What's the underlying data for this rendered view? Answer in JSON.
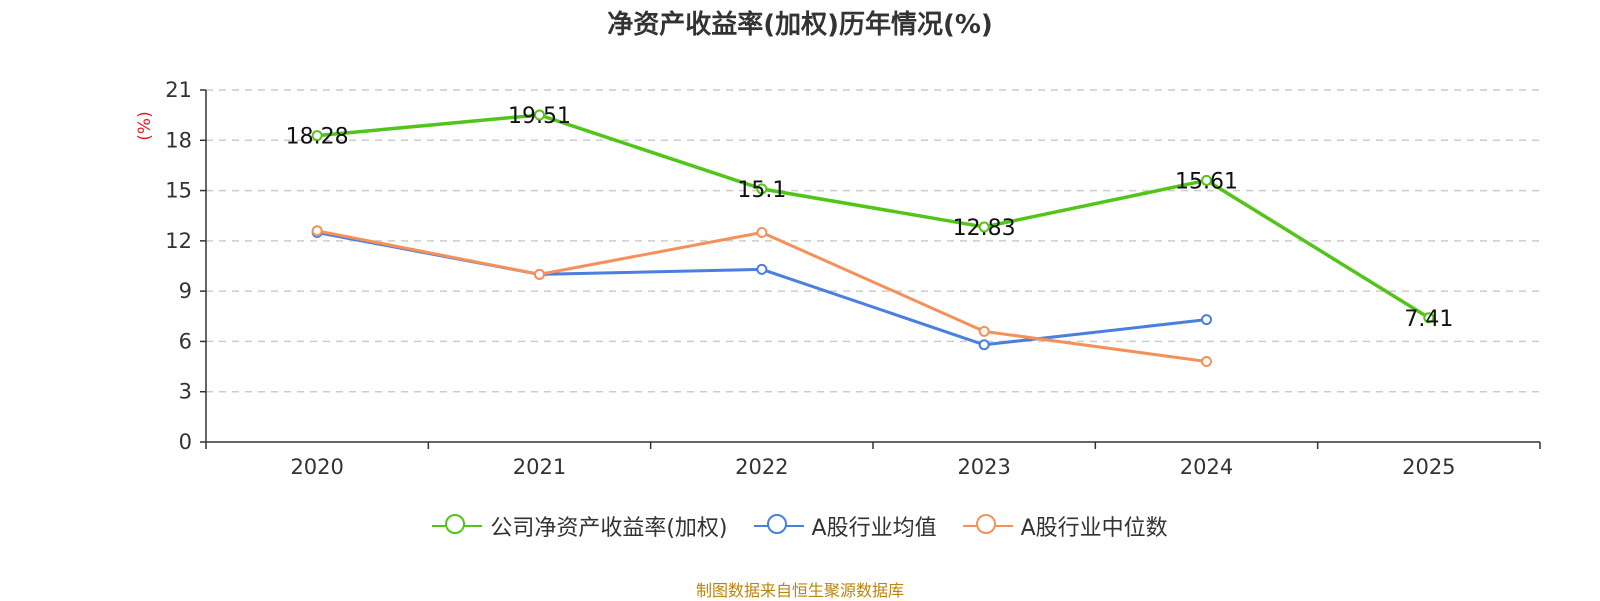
{
  "chart_data": {
    "type": "line",
    "title": "净资产收益率(加权)历年情况(%)",
    "ylabel": "(%)",
    "xlabel": "",
    "categories": [
      "2020",
      "2021",
      "2022",
      "2023",
      "2024",
      "2025"
    ],
    "ylim": [
      0,
      21
    ],
    "yticks": [
      0,
      3,
      6,
      9,
      12,
      15,
      18,
      21
    ],
    "grid": true,
    "legend_position": "bottom",
    "series": [
      {
        "name": "公司净资产收益率(加权)",
        "color": "#52c41a",
        "values": [
          18.28,
          19.51,
          15.1,
          12.83,
          15.61,
          7.41
        ],
        "labels": [
          "18.28",
          "19.51",
          "15.1",
          "12.83",
          "15.61",
          "7.41"
        ]
      },
      {
        "name": "A股行业均值",
        "color": "#4a7fe0",
        "values": [
          12.5,
          10.0,
          10.3,
          5.8,
          7.3,
          null
        ]
      },
      {
        "name": "A股行业中位数",
        "color": "#f4915a",
        "values": [
          12.6,
          10.0,
          12.5,
          6.6,
          4.8,
          null
        ]
      }
    ]
  },
  "source": "制图数据来自恒生聚源数据库"
}
